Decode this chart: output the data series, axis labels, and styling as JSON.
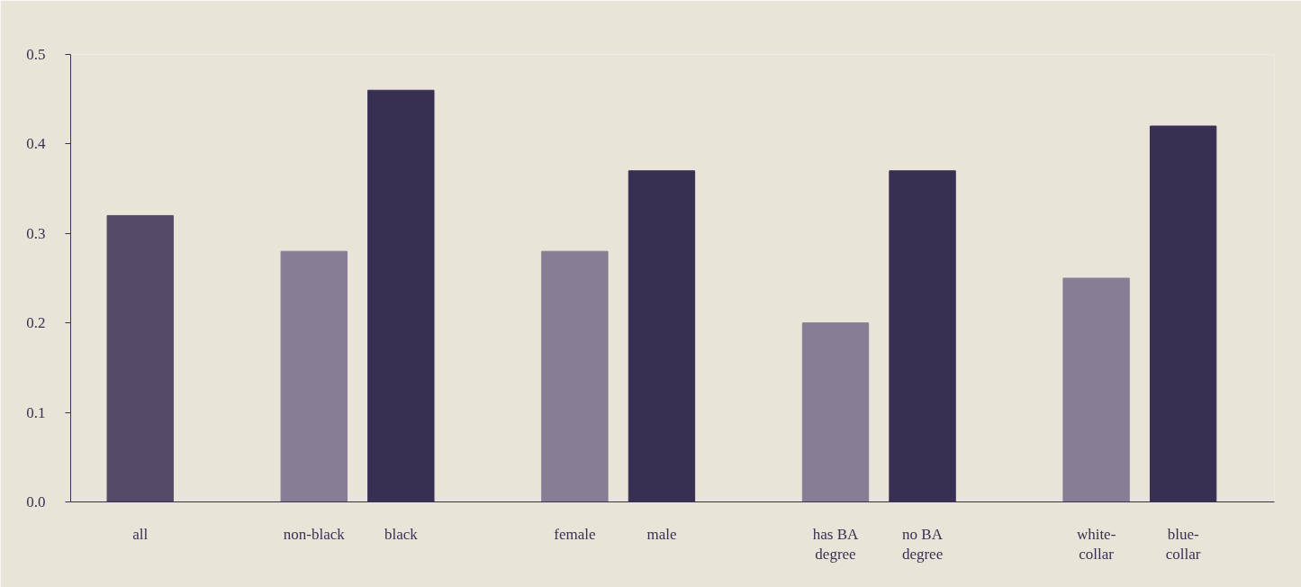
{
  "chart_data": {
    "type": "bar",
    "categories": [
      "all",
      null,
      "non-black",
      "black",
      null,
      "female",
      "male",
      null,
      "has BA\ndegree",
      "no BA\ndegree",
      null,
      "white-\ncollar",
      "blue-\ncollar"
    ],
    "values": [
      0.32,
      null,
      0.28,
      0.46,
      null,
      0.28,
      0.37,
      null,
      0.2,
      0.37,
      null,
      0.25,
      0.42
    ],
    "colors": [
      "#554a68",
      null,
      "#877d95",
      "#383052",
      null,
      "#877d95",
      "#383052",
      null,
      "#877d95",
      "#383052",
      null,
      "#877d95",
      "#383052"
    ],
    "ylim": [
      0,
      0.5
    ],
    "yticks": [
      {
        "value": 0,
        "label": "0.0"
      },
      0.1,
      0.2,
      0.3,
      0.4,
      0.5
    ],
    "grid": false
  }
}
